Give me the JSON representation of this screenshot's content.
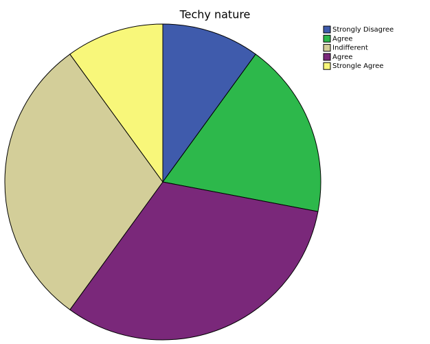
{
  "chart_data": {
    "type": "pie",
    "title": "Techy nature",
    "categories": [
      "Strongly Disagree",
      "Agree",
      "Indifferent",
      "Agree",
      "Strongle Agree"
    ],
    "values": [
      10,
      18,
      30,
      32,
      10
    ],
    "colors": [
      "#3f5bac",
      "#2db84b",
      "#d3ce99",
      "#7a287a",
      "#f8f77a"
    ],
    "draw_order": [
      0,
      1,
      3,
      2,
      4
    ]
  }
}
